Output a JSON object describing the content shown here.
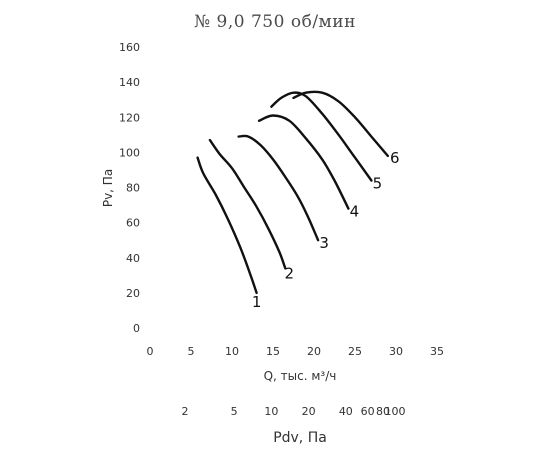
{
  "chart_data": {
    "type": "line",
    "title": "№ 9,0  750 об/мин",
    "xlabel": "Q, тыс. м³/ч",
    "ylabel": "Pv, Па",
    "xlim": [
      0,
      35
    ],
    "ylim": [
      0,
      160
    ],
    "x_ticks": [
      "0",
      "5",
      "10",
      "15",
      "20",
      "25",
      "30",
      "35"
    ],
    "y_ticks": [
      "0",
      "20",
      "40",
      "60",
      "80",
      "100",
      "120",
      "140",
      "160"
    ],
    "grid": false,
    "series": [
      {
        "name": "1",
        "x": [
          5.8,
          6.5,
          8.0,
          9.5,
          11.0,
          12.2,
          13.0
        ],
        "y": [
          97,
          88,
          76,
          62,
          46,
          31,
          20
        ]
      },
      {
        "name": "2",
        "x": [
          7.3,
          8.5,
          10.0,
          11.5,
          13.0,
          14.5,
          15.8,
          16.5
        ],
        "y": [
          107,
          99,
          91,
          80,
          69,
          56,
          43,
          34
        ]
      },
      {
        "name": "3",
        "x": [
          10.8,
          12.0,
          13.5,
          15.0,
          16.5,
          18.0,
          19.2,
          20.5
        ],
        "y": [
          109,
          109,
          104,
          96,
          86,
          75,
          64,
          50
        ]
      },
      {
        "name": "4",
        "x": [
          13.3,
          15.0,
          17.0,
          19.0,
          21.0,
          22.5,
          24.2
        ],
        "y": [
          118,
          121,
          118,
          108,
          96,
          84,
          68
        ]
      },
      {
        "name": "5",
        "x": [
          14.8,
          16.0,
          17.5,
          19.0,
          21.0,
          23.0,
          25.0,
          27.0
        ],
        "y": [
          126,
          131,
          134,
          132,
          122,
          110,
          97,
          84
        ]
      },
      {
        "name": "6",
        "x": [
          17.5,
          19.0,
          21.0,
          23.0,
          25.0,
          27.0,
          29.0
        ],
        "y": [
          131,
          134,
          134,
          129,
          120,
          109,
          98
        ]
      }
    ],
    "secondary_axis": {
      "label": "Pdv, Па",
      "ticks": [
        "2",
        "5",
        "10",
        "20",
        "40",
        "60",
        "80",
        "100"
      ]
    }
  }
}
